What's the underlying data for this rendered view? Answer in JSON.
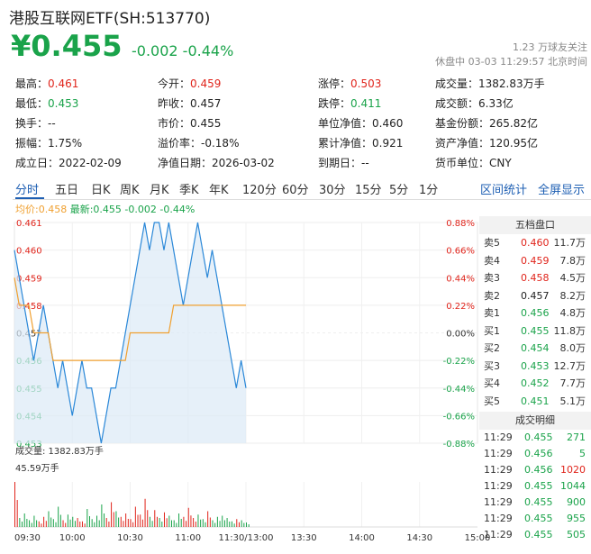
{
  "header": {
    "title": "港股互联网ETF(SH:513770)",
    "price": "¥0.455",
    "change": "-0.002 -0.44%",
    "follow": "1.23 万球友关注",
    "status": "休盘中 03-03 11:29:57 北京时间"
  },
  "quote_rows": [
    [
      {
        "label": "最高：",
        "value": "0.461",
        "color": "red"
      },
      {
        "label": "今开：",
        "value": "0.459",
        "color": "red"
      },
      {
        "label": "涨停：",
        "value": "0.503",
        "color": "red"
      },
      {
        "label": "成交量：",
        "value": "1382.83万手",
        "color": ""
      }
    ],
    [
      {
        "label": "最低：",
        "value": "0.453",
        "color": "green"
      },
      {
        "label": "昨收：",
        "value": "0.457",
        "color": ""
      },
      {
        "label": "跌停：",
        "value": "0.411",
        "color": "green"
      },
      {
        "label": "成交额：",
        "value": "6.33亿",
        "color": ""
      }
    ],
    [
      {
        "label": "换手：",
        "value": "--",
        "color": ""
      },
      {
        "label": "市价：",
        "value": "0.455",
        "color": ""
      },
      {
        "label": "单位净值：",
        "value": "0.460",
        "color": ""
      },
      {
        "label": "基金份额：",
        "value": "265.82亿",
        "color": ""
      }
    ],
    [
      {
        "label": "振幅：",
        "value": "1.75%",
        "color": ""
      },
      {
        "label": "溢价率：",
        "value": "-0.18%",
        "color": ""
      },
      {
        "label": "累计净值：",
        "value": "0.921",
        "color": ""
      },
      {
        "label": "资产净值：",
        "value": "120.95亿",
        "color": ""
      }
    ],
    [
      {
        "label": "成立日：",
        "value": "2022-02-09",
        "color": ""
      },
      {
        "label": "净值日期：",
        "value": "2026-03-02",
        "color": ""
      },
      {
        "label": "到期日：",
        "value": "--",
        "color": ""
      },
      {
        "label": "货币单位：",
        "value": "CNY",
        "color": ""
      }
    ]
  ],
  "tabs": [
    "分时",
    "五日",
    "日K",
    "周K",
    "月K",
    "季K",
    "年K",
    "120分",
    "60分",
    "30分",
    "15分",
    "5分",
    "1分"
  ],
  "tab_right": [
    "区间统计",
    "全屏显示"
  ],
  "legend": {
    "avg": "均价:0.458",
    "last": "最新:0.455 -0.002 -0.44%"
  },
  "volume_labels": {
    "total": "成交量: 1382.83万手",
    "max": "45.59万手"
  },
  "order_book": {
    "title": "五档盘口",
    "asks": [
      {
        "label": "卖5",
        "price": "0.460",
        "vol": "11.7万",
        "color": "red"
      },
      {
        "label": "卖4",
        "price": "0.459",
        "vol": "7.8万",
        "color": "red"
      },
      {
        "label": "卖3",
        "price": "0.458",
        "vol": "4.5万",
        "color": "red"
      },
      {
        "label": "卖2",
        "price": "0.457",
        "vol": "8.2万",
        "color": ""
      },
      {
        "label": "卖1",
        "price": "0.456",
        "vol": "4.8万",
        "color": "green"
      }
    ],
    "bids": [
      {
        "label": "买1",
        "price": "0.455",
        "vol": "11.8万",
        "color": "green"
      },
      {
        "label": "买2",
        "price": "0.454",
        "vol": "8.0万",
        "color": "green"
      },
      {
        "label": "买3",
        "price": "0.453",
        "vol": "12.7万",
        "color": "green"
      },
      {
        "label": "买4",
        "price": "0.452",
        "vol": "7.7万",
        "color": "green"
      },
      {
        "label": "买5",
        "price": "0.451",
        "vol": "5.1万",
        "color": "green"
      }
    ]
  },
  "trades": {
    "title": "成交明细",
    "rows": [
      {
        "time": "11:29",
        "price": "0.455",
        "vol": "271",
        "color": "green"
      },
      {
        "time": "11:29",
        "price": "0.456",
        "vol": "5",
        "color": "green"
      },
      {
        "time": "11:29",
        "price": "0.456",
        "vol": "1020",
        "color": "red"
      },
      {
        "time": "11:29",
        "price": "0.455",
        "vol": "1044",
        "color": "green"
      },
      {
        "time": "11:29",
        "price": "0.455",
        "vol": "900",
        "color": "green"
      },
      {
        "time": "11:29",
        "price": "0.455",
        "vol": "955",
        "color": "green"
      },
      {
        "time": "11:29",
        "price": "0.455",
        "vol": "505",
        "color": "green"
      }
    ]
  },
  "chart_data": {
    "type": "line",
    "y_ticks_left": [
      "0.461",
      "0.460",
      "0.459",
      "0.458",
      "0.457",
      "0.456",
      "0.455",
      "0.454",
      "0.453"
    ],
    "y_ticks_right": [
      "0.88%",
      "0.66%",
      "0.44%",
      "0.22%",
      "0.00%",
      "-0.22%",
      "-0.44%",
      "-0.66%",
      "-0.88%"
    ],
    "x_ticks": [
      "09:30",
      "10:00",
      "10:30",
      "11:00",
      "11:30/13:00",
      "13:30",
      "14:00",
      "14:30",
      "15:00"
    ],
    "ylim": [
      0.453,
      0.461
    ],
    "prev_close": 0.457,
    "price_series": [
      0.46,
      0.459,
      0.458,
      0.457,
      0.456,
      0.457,
      0.458,
      0.457,
      0.456,
      0.455,
      0.456,
      0.455,
      0.454,
      0.455,
      0.456,
      0.455,
      0.455,
      0.454,
      0.453,
      0.454,
      0.455,
      0.455,
      0.456,
      0.457,
      0.458,
      0.459,
      0.46,
      0.461,
      0.46,
      0.461,
      0.461,
      0.46,
      0.461,
      0.46,
      0.459,
      0.458,
      0.459,
      0.46,
      0.461,
      0.46,
      0.459,
      0.46,
      0.459,
      0.458,
      0.457,
      0.456,
      0.455,
      0.456,
      0.455
    ],
    "avg_series": [
      0.459,
      0.458,
      0.458,
      0.458,
      0.457,
      0.457,
      0.457,
      0.457,
      0.456,
      0.456,
      0.456,
      0.456,
      0.456,
      0.456,
      0.456,
      0.456,
      0.456,
      0.456,
      0.456,
      0.456,
      0.456,
      0.456,
      0.456,
      0.456,
      0.457,
      0.457,
      0.457,
      0.457,
      0.457,
      0.457,
      0.457,
      0.457,
      0.457,
      0.458,
      0.458,
      0.458,
      0.458,
      0.458,
      0.458,
      0.458,
      0.458,
      0.458,
      0.458,
      0.458,
      0.458,
      0.458,
      0.458,
      0.458,
      0.458
    ],
    "volume_series": [
      40,
      8,
      12,
      6,
      10,
      5,
      9,
      14,
      7,
      18,
      6,
      11,
      9,
      8,
      5,
      16,
      7,
      10,
      20,
      8,
      22,
      14,
      9,
      12,
      7,
      18,
      11,
      25,
      9,
      15,
      8,
      13,
      10,
      6,
      12,
      9,
      17,
      8,
      11,
      7,
      14,
      6,
      9,
      10,
      8,
      5,
      7,
      6,
      4
    ],
    "volume_colors": [
      "red",
      "green",
      "green",
      "green",
      "green",
      "red",
      "red",
      "green",
      "green",
      "green",
      "red",
      "green",
      "green",
      "red",
      "red",
      "green",
      "green",
      "green",
      "green",
      "red",
      "red",
      "green",
      "red",
      "red",
      "red",
      "red",
      "red",
      "red",
      "green",
      "red",
      "green",
      "red",
      "green",
      "green",
      "green",
      "red",
      "red",
      "red",
      "green",
      "green",
      "red",
      "green",
      "green",
      "green",
      "green",
      "green",
      "red",
      "green",
      "green"
    ]
  }
}
